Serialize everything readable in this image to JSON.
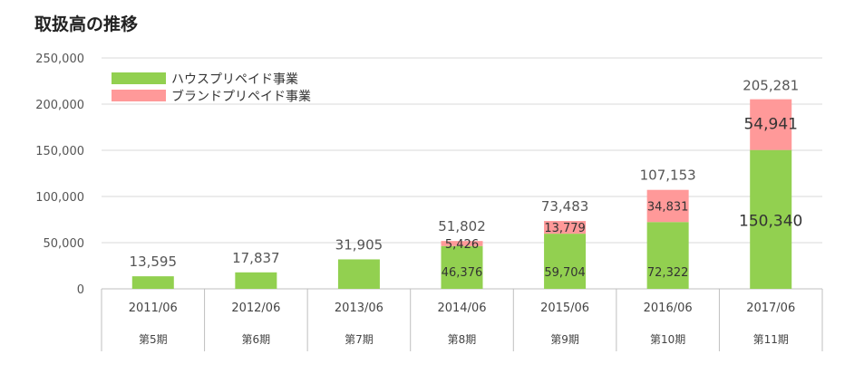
{
  "title": "取扱高の推移",
  "colors": {
    "house": "#92d050",
    "brand": "#ff9999",
    "grid": "#d9d9d9",
    "axis": "#bfbfbf"
  },
  "chart_data": {
    "type": "bar",
    "stacked": true,
    "categories": [
      "2011/06",
      "2012/06",
      "2013/06",
      "2014/06",
      "2015/06",
      "2016/06",
      "2017/06"
    ],
    "periods": [
      "第5期",
      "第6期",
      "第7期",
      "第8期",
      "第9期",
      "第10期",
      "第11期"
    ],
    "series": [
      {
        "name": "ハウスプリペイド事業",
        "color": "#92d050",
        "values": [
          13595,
          17837,
          31905,
          46376,
          59704,
          72322,
          150340
        ],
        "labels": [
          "",
          "",
          "",
          "46,376",
          "59,704",
          "72,322",
          "150,340"
        ]
      },
      {
        "name": "ブランドプリペイド事業",
        "color": "#ff9999",
        "values": [
          0,
          0,
          0,
          5426,
          13779,
          34831,
          54941
        ],
        "labels": [
          "",
          "",
          "",
          "5,426",
          "13,779",
          "34,831",
          "54,941"
        ]
      }
    ],
    "totals": [
      "13,595",
      "17,837",
      "31,905",
      "51,802",
      "73,483",
      "107,153",
      "205,281"
    ],
    "yticks": [
      "0",
      "50,000",
      "100,000",
      "150,000",
      "200,000",
      "250,000"
    ],
    "ylim": [
      0,
      250000
    ],
    "grid": true,
    "legend_position": "top-left"
  }
}
